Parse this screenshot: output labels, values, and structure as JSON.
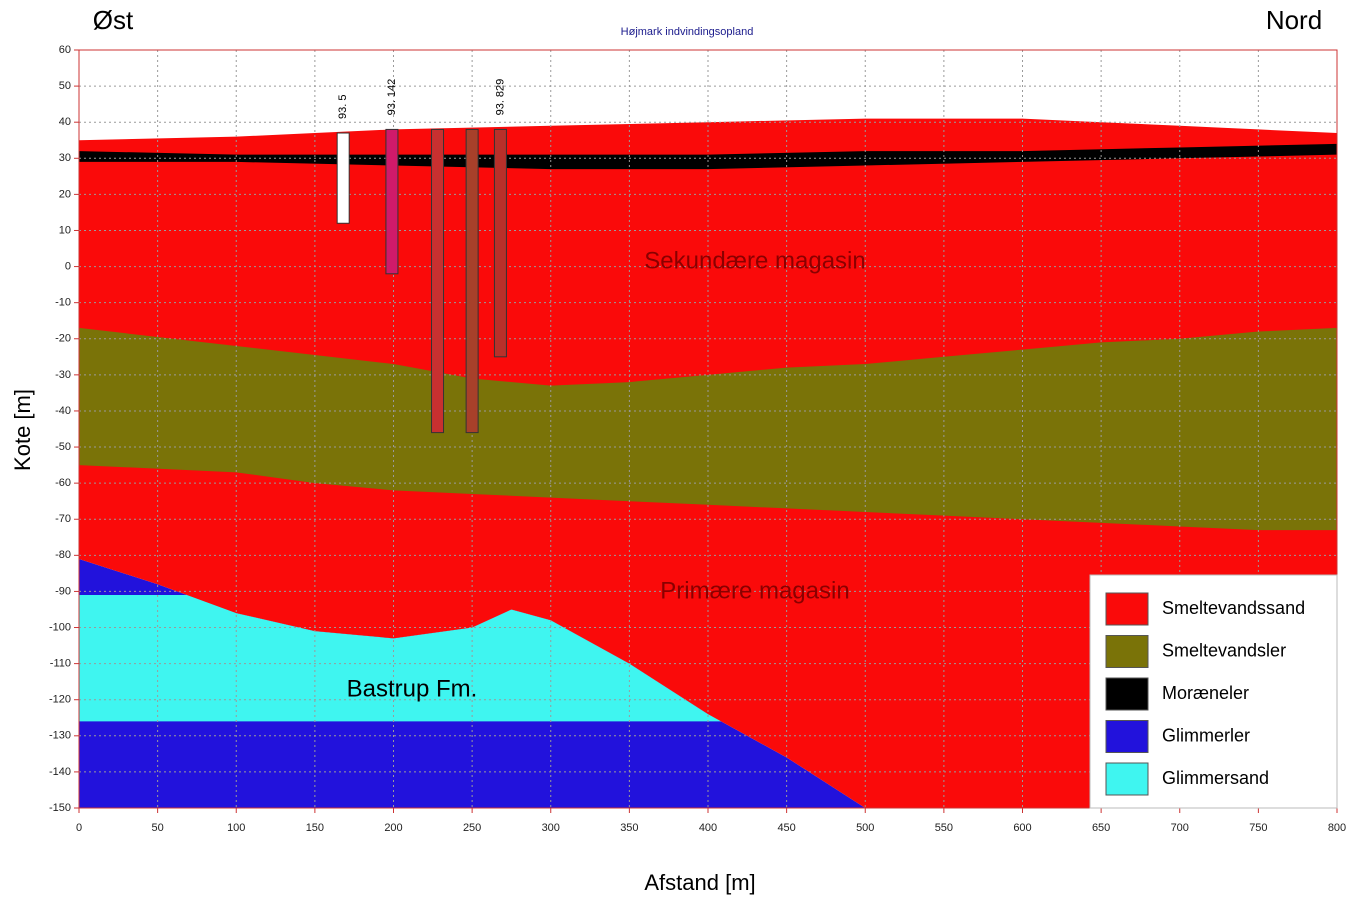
{
  "chart_data": {
    "type": "cross-section",
    "title": "Højmark indvindingsopland",
    "corner_labels": [
      "Øst",
      "Nord"
    ],
    "x_label": "Afstand [m]",
    "y_label": "Kote [m]",
    "annotations": [
      "Sekundære magasin",
      "Primære magasin",
      "Bastrup Fm."
    ],
    "xlim": [
      0,
      800
    ],
    "ylim": [
      -150,
      60
    ],
    "xticks": [
      0,
      50,
      100,
      150,
      200,
      250,
      300,
      350,
      400,
      450,
      500,
      550,
      600,
      650,
      700,
      750,
      800
    ],
    "yticks": [
      60,
      50,
      40,
      30,
      20,
      10,
      0,
      -10,
      -20,
      -30,
      -40,
      -50,
      -60,
      -70,
      -80,
      -90,
      -100,
      -110,
      -120,
      -130,
      -140,
      -150
    ],
    "grid": true,
    "legend": "bottom-right",
    "layers": [
      {
        "name": "Glimmerler",
        "color": "#2212dc",
        "x": [
          0,
          50,
          100,
          150,
          200,
          250,
          275,
          300,
          350,
          400,
          450,
          500,
          0
        ],
        "y": [
          -81,
          -88,
          -96,
          -101,
          -103,
          -100,
          -95,
          -98,
          -110,
          -124,
          -136,
          -150,
          -150
        ]
      },
      {
        "name": "Glimmersand",
        "color": "#3ff5f0",
        "x": [
          0,
          75,
          100,
          150,
          200,
          250,
          275,
          300,
          350,
          400,
          410,
          0
        ],
        "y": [
          -91,
          -91,
          -96,
          -101,
          -103,
          -100,
          -95,
          -98,
          -110,
          -124,
          -126,
          -126
        ]
      },
      {
        "name": "Smeltevandssand",
        "color": "#fa0a0a",
        "x": [
          0,
          100,
          150,
          200,
          300,
          400,
          500,
          550,
          600,
          650,
          700,
          750,
          800,
          800,
          500,
          450,
          400,
          350,
          300,
          275,
          250,
          200,
          150,
          100,
          50,
          0
        ],
        "y": [
          35,
          36,
          37,
          38,
          39,
          40,
          41,
          41,
          41,
          40,
          39,
          38,
          37,
          -150,
          -150,
          -136,
          -124,
          -110,
          -98,
          -95,
          -100,
          -103,
          -101,
          -96,
          -88,
          -81
        ]
      },
      {
        "name": "Smeltevandsler",
        "color": "#7a7308",
        "x": [
          0,
          100,
          200,
          250,
          300,
          350,
          400,
          450,
          500,
          550,
          600,
          650,
          700,
          750,
          800,
          800,
          750,
          700,
          650,
          600,
          550,
          500,
          450,
          400,
          350,
          300,
          250,
          200,
          150,
          100,
          0
        ],
        "y": [
          -17,
          -22,
          -27,
          -31,
          -33,
          -32,
          -30,
          -28,
          -27,
          -25,
          -23,
          -21,
          -20,
          -18,
          -17,
          -73,
          -73,
          -72,
          -71,
          -70,
          -69,
          -68,
          -67,
          -66,
          -65,
          -64,
          -63,
          -62,
          -60,
          -57,
          -55
        ]
      },
      {
        "name": "Moræneler",
        "color": "#000000",
        "x": [
          0,
          100,
          200,
          300,
          400,
          500,
          600,
          700,
          800,
          800,
          700,
          600,
          500,
          400,
          300,
          200,
          100,
          0
        ],
        "y": [
          32,
          31,
          31,
          31,
          31,
          32,
          32,
          33,
          34,
          31,
          30,
          29,
          28,
          27,
          27,
          28,
          29,
          29
        ]
      }
    ],
    "boreholes": [
      {
        "label": "93. 5",
        "color": "#ffffff",
        "x": 168,
        "top": 37,
        "bottom": 12
      },
      {
        "label": "93. 142",
        "color": "#d01a6a",
        "x": 199,
        "top": 38,
        "bottom": -2
      },
      {
        "label": null,
        "color": "#c83030",
        "x": 228,
        "top": 38,
        "bottom": -46
      },
      {
        "label": null,
        "color": "#a8402a",
        "x": 250,
        "top": 38,
        "bottom": -46
      },
      {
        "label": "93. 829",
        "color": "#b8302a",
        "x": 268,
        "top": 38,
        "bottom": -25
      }
    ]
  }
}
